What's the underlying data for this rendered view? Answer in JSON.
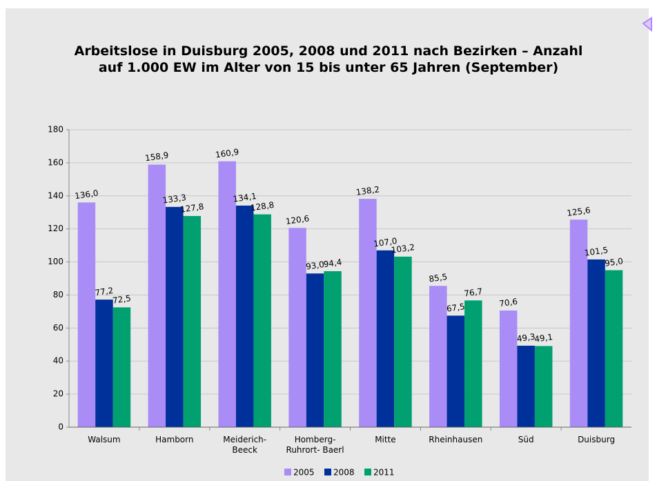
{
  "chart_data": {
    "type": "bar",
    "title": "Arbeitslose in Duisburg 2005, 2008 und 2011 nach Bezirken – Anzahl\nauf 1.000 EW im Alter von 15 bis unter 65 Jahren (September)",
    "categories": [
      "Walsum",
      "Hamborn",
      "Meiderich-\nBeeck",
      "Homberg-\nRuhrort- Baerl",
      "Mitte",
      "Rheinhausen",
      "Süd",
      "Duisburg"
    ],
    "series": [
      {
        "name": "2005",
        "color": "#a98cf6",
        "values": [
          136.0,
          158.9,
          160.9,
          120.6,
          138.2,
          85.5,
          70.6,
          125.6
        ],
        "value_labels": [
          "136,0",
          "158,9",
          "160,9",
          "120,6",
          "138,2",
          "85,5",
          "70,6",
          "125,6"
        ]
      },
      {
        "name": "2008",
        "color": "#00309a",
        "values": [
          77.2,
          133.3,
          134.1,
          93.0,
          107.0,
          67.5,
          49.3,
          101.5
        ],
        "value_labels": [
          "77,2",
          "133,3",
          "134,1",
          "93,0",
          "107,0",
          "67,5",
          "49,3",
          "101,5"
        ]
      },
      {
        "name": "2011",
        "color": "#00a070",
        "values": [
          72.5,
          127.8,
          128.8,
          94.4,
          103.2,
          76.7,
          49.1,
          95.0
        ],
        "value_labels": [
          "72,5",
          "127,8",
          "128,8",
          "94,4",
          "103,2",
          "76,7",
          "49,1",
          "95,0"
        ]
      }
    ],
    "ylim": [
      0,
      180
    ],
    "yticks": [
      0,
      20,
      40,
      60,
      80,
      100,
      120,
      140,
      160,
      180
    ],
    "grid": true,
    "legend": "bottom"
  }
}
